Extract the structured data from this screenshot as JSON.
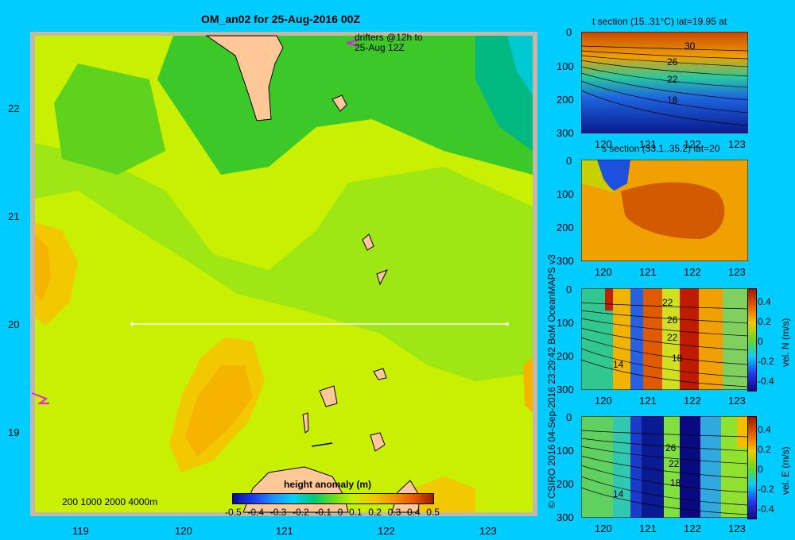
{
  "main_map": {
    "title": "OM_an02 for 25-Aug-2016 00Z",
    "drifters_note_line1": "drifters @12h to",
    "drifters_note_line2": "25-Aug 12Z",
    "lat_ticks": [
      "22",
      "21",
      "20",
      "19"
    ],
    "lon_ticks": [
      "119",
      "120",
      "121",
      "122",
      "123"
    ],
    "depth_legend": "200  1000  2000  4000m",
    "colorbar_title": "height anomaly  (m)",
    "colorbar_ticks": [
      "-0.5",
      "-0.4",
      "-0.3",
      "-0.2",
      "-0.1",
      "0",
      "0.1",
      "0.2",
      "0.3",
      "0.4",
      "0.5"
    ]
  },
  "credit": "© CSIRO 2016   04-Sep-2016 23:29:42 BoM OceanMAPS v3",
  "panels": [
    {
      "title": "t section (15..31°C) lat=19.95 at",
      "y_ticks": [
        "0",
        "100",
        "200",
        "300"
      ],
      "x_ticks": [
        "120",
        "121",
        "122",
        "123"
      ],
      "contour_labels": [
        "30",
        "26",
        "22",
        "18"
      ]
    },
    {
      "title": "s section (33.1..35.2) lat=20",
      "y_ticks": [
        "0",
        "100",
        "200",
        "300"
      ],
      "x_ticks": [
        "120",
        "121",
        "122",
        "123"
      ]
    },
    {
      "title": "",
      "y_ticks": [
        "0",
        "100",
        "200",
        "300"
      ],
      "x_ticks": [
        "120",
        "121",
        "122",
        "123"
      ],
      "cb_ticks": [
        "0.4",
        "0.2",
        "0",
        "-0.2",
        "-0.4"
      ],
      "cb_label": "vel. N (m/s)",
      "contour_labels": [
        "22",
        "26",
        "22",
        "18",
        "14"
      ]
    },
    {
      "title": "",
      "y_ticks": [
        "0",
        "100",
        "200",
        "300"
      ],
      "x_ticks": [
        "120",
        "121",
        "122",
        "123"
      ],
      "cb_ticks": [
        "0.4",
        "0.2",
        "0",
        "-0.2",
        "-0.4"
      ],
      "cb_label": "vel. E (m/s)",
      "contour_labels": [
        "26",
        "22",
        "18",
        "14"
      ]
    }
  ],
  "chart_data": [
    {
      "type": "heatmap",
      "title": "OM_an02 for 25-Aug-2016 00Z",
      "xlabel": "",
      "ylabel": "",
      "xlim": [
        118.5,
        123.5
      ],
      "ylim": [
        18.25,
        22.7
      ],
      "colorbar": {
        "label": "height anomaly  (m)",
        "range": [
          -0.5,
          0.5
        ]
      },
      "section_line": {
        "lat": 20,
        "lon_start": 119.5,
        "lon_end": 123.2
      }
    },
    {
      "type": "heatmap",
      "title": "t section (15..31°C) lat=19.95 at",
      "xlim": [
        119.5,
        123.3
      ],
      "ylim": [
        300,
        0
      ],
      "value_range": [
        15,
        31
      ]
    },
    {
      "type": "heatmap",
      "title": "s section (33.1..35.2) lat=20",
      "xlim": [
        119.5,
        123.3
      ],
      "ylim": [
        300,
        0
      ],
      "value_range": [
        33.1,
        35.2
      ]
    },
    {
      "type": "heatmap",
      "colorbar": {
        "label": "vel. N (m/s)",
        "range": [
          -0.4,
          0.4
        ]
      },
      "xlim": [
        119.5,
        123.3
      ],
      "ylim": [
        300,
        0
      ]
    },
    {
      "type": "heatmap",
      "colorbar": {
        "label": "vel. E (m/s)",
        "range": [
          -0.4,
          0.4
        ]
      },
      "xlim": [
        119.5,
        123.3
      ],
      "ylim": [
        300,
        0
      ]
    }
  ]
}
